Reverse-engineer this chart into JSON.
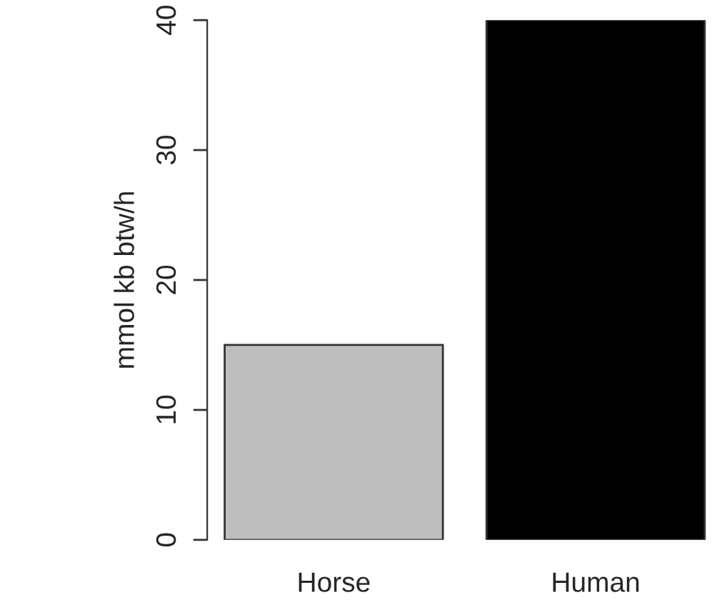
{
  "chart_data": {
    "type": "bar",
    "ylabel": "mmol kb btw/h",
    "categories": [
      "Horse",
      "Human"
    ],
    "values": [
      15,
      40
    ],
    "colors": [
      "#bebebe",
      "#000000"
    ],
    "ylim": [
      0,
      40
    ],
    "yticks": [
      0,
      10,
      20,
      30,
      40
    ],
    "grid": false,
    "legend": false
  }
}
